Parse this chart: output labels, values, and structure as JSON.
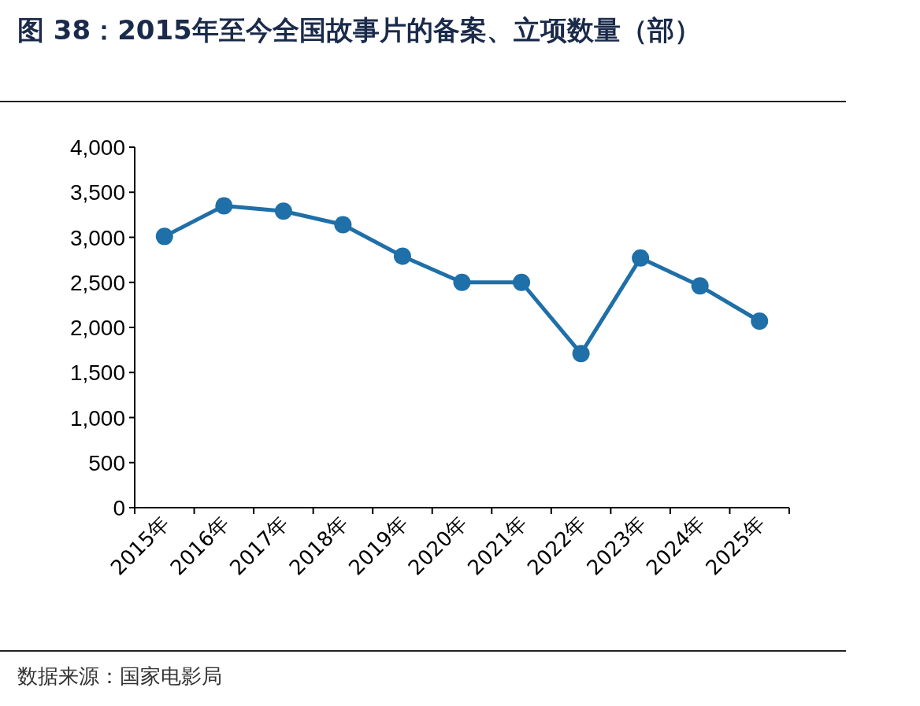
{
  "chart_data": {
    "type": "line",
    "title": "图 38：2015年至今全国故事片的备案、立项数量（部）",
    "annotations": [
      "数据来源：国家电影局"
    ],
    "categories": [
      "2015年",
      "2016年",
      "2017年",
      "2018年",
      "2019年",
      "2020年",
      "2021年",
      "2022年",
      "2023年",
      "2024年",
      "2025年"
    ],
    "series": [
      {
        "color": "#1f6fa8",
        "values": [
          3010,
          3350,
          3290,
          3140,
          2790,
          2500,
          2500,
          1710,
          2770,
          2460,
          2070
        ]
      }
    ],
    "ylim": [
      0,
      4000
    ],
    "yticks": [
      0,
      500,
      {
        "value": 1000,
        "label": "1,000"
      },
      {
        "value": 1500,
        "label": "1,500"
      },
      {
        "value": 2000,
        "label": "2,000"
      },
      {
        "value": 2500,
        "label": "2,500"
      },
      {
        "value": 3000,
        "label": "3,000"
      },
      {
        "value": 3500,
        "label": "3,500"
      },
      {
        "value": 4000,
        "label": "4,000"
      }
    ],
    "marker": "circle",
    "line_style": "solid"
  }
}
